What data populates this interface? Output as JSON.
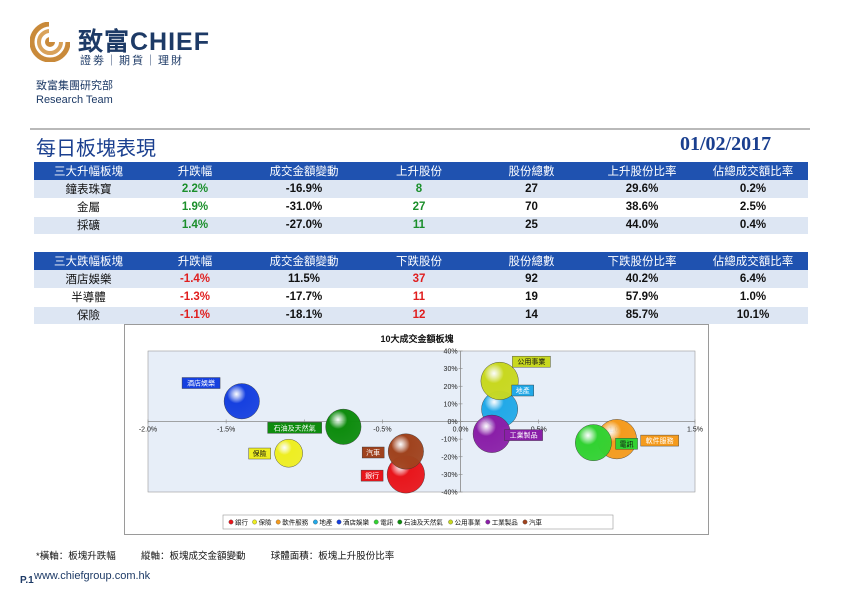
{
  "brand": {
    "name": "致富CHIEF",
    "tagline": "證劵｜期貨｜理財"
  },
  "dept": {
    "line1": "致富集團研究部",
    "line2": "Research Team"
  },
  "title": "每日板塊表現",
  "date": "01/02/2017",
  "gainers": {
    "headers": [
      "三大升幅板塊",
      "升跌幅",
      "成交金額變動",
      "上升股份",
      "股份總數",
      "上升股份比率",
      "佔總成交額比率"
    ],
    "rows": [
      [
        "鐘表珠寶",
        "2.2%",
        "-16.9%",
        "8",
        "27",
        "29.6%",
        "0.2%"
      ],
      [
        "金屬",
        "1.9%",
        "-31.0%",
        "27",
        "70",
        "38.6%",
        "2.5%"
      ],
      [
        "採礦",
        "1.4%",
        "-27.0%",
        "11",
        "25",
        "44.0%",
        "0.4%"
      ]
    ]
  },
  "losers": {
    "headers": [
      "三大跌幅板塊",
      "升跌幅",
      "成交金額變動",
      "下跌股份",
      "股份總數",
      "下跌股份比率",
      "佔總成交額比率"
    ],
    "rows": [
      [
        "酒店娛樂",
        "-1.4%",
        "11.5%",
        "37",
        "92",
        "40.2%",
        "6.4%"
      ],
      [
        "半導體",
        "-1.3%",
        "-17.7%",
        "11",
        "19",
        "57.9%",
        "1.0%"
      ],
      [
        "保險",
        "-1.1%",
        "-18.1%",
        "12",
        "14",
        "85.7%",
        "10.1%"
      ]
    ]
  },
  "chart_data": {
    "type": "bubble",
    "title": "10大成交金額板塊",
    "xlim": [
      -2.0,
      1.5
    ],
    "ylim": [
      -40,
      40
    ],
    "x_ticks": [
      "-2.0%",
      "-1.5%",
      "-1.0%",
      "-0.5%",
      "0.0%",
      "0.5%",
      "1.0%",
      "1.5%"
    ],
    "y_ticks": [
      "40%",
      "30%",
      "20%",
      "10%",
      "0%",
      "-10%",
      "-20%",
      "-30%",
      "-40%"
    ],
    "legend_position": "bottom",
    "series": [
      {
        "name": "銀行",
        "x": -0.35,
        "y": -30,
        "bubble": 0.45,
        "color": "#e8161c"
      },
      {
        "name": "保險",
        "x": -1.1,
        "y": -18,
        "bubble": 0.25,
        "color": "#eeee22"
      },
      {
        "name": "軟件服務",
        "x": 1.0,
        "y": -10,
        "bubble": 0.5,
        "color": "#f59b1d"
      },
      {
        "name": "地產",
        "x": 0.25,
        "y": 7,
        "bubble": 0.42,
        "color": "#22a9e8"
      },
      {
        "name": "酒店娛樂",
        "x": -1.4,
        "y": 11.5,
        "bubble": 0.4,
        "color": "#1640e0"
      },
      {
        "name": "電訊",
        "x": 0.85,
        "y": -12,
        "bubble": 0.42,
        "color": "#32d232"
      },
      {
        "name": "石油及天然氣",
        "x": -0.75,
        "y": -3,
        "bubble": 0.4,
        "color": "#0e8c0e"
      },
      {
        "name": "公用事業",
        "x": 0.25,
        "y": 23,
        "bubble": 0.45,
        "color": "#c8d820"
      },
      {
        "name": "工業製品",
        "x": 0.2,
        "y": -7,
        "bubble": 0.45,
        "color": "#8a1fa8"
      },
      {
        "name": "汽車",
        "x": -0.35,
        "y": -17,
        "bubble": 0.4,
        "color": "#a0431e"
      }
    ]
  },
  "footnote": {
    "x_label": "*橫軸：板塊升跌幅",
    "y_label": "縱軸：板塊成交金額變動",
    "area_label": "球體面積：板塊上升股份比率"
  },
  "page": "P.1",
  "website": "www.chiefgroup.com.hk"
}
